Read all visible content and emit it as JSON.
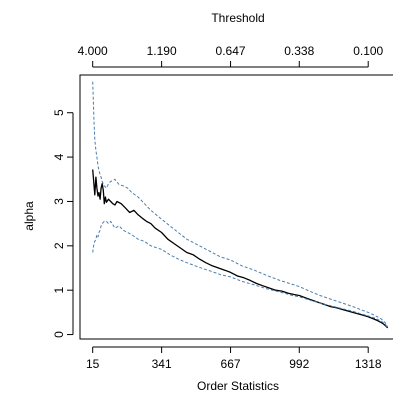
{
  "chart_data": {
    "type": "line",
    "xlabel": "Order Statistics",
    "ylabel": "alpha",
    "top_axis_label": "Threshold",
    "xlim": [
      -45,
      1440
    ],
    "ylim": [
      -0.1,
      5.85
    ],
    "x_ticks": [
      15,
      341,
      667,
      992,
      1318
    ],
    "x_tick_labels": [
      "15",
      "341",
      "667",
      "992",
      "1318"
    ],
    "y_ticks": [
      0,
      1,
      2,
      3,
      4,
      5
    ],
    "y_tick_labels": [
      "0",
      "1",
      "2",
      "3",
      "4",
      "5"
    ],
    "top_ticks": [
      15,
      341,
      667,
      992,
      1318
    ],
    "top_tick_labels": [
      "4.000",
      "1.190",
      "0.647",
      "0.338",
      "0.100"
    ],
    "grid": false,
    "series": [
      {
        "name": "",
        "role": "estimate",
        "color": "#000000",
        "style": "solid",
        "x": [
          15,
          20,
          25,
          30,
          35,
          40,
          45,
          50,
          55,
          60,
          65,
          70,
          75,
          80,
          90,
          100,
          110,
          120,
          130,
          150,
          170,
          190,
          210,
          230,
          250,
          270,
          290,
          310,
          341,
          370,
          400,
          430,
          460,
          490,
          520,
          550,
          580,
          610,
          640,
          667,
          700,
          730,
          760,
          790,
          820,
          850,
          880,
          910,
          940,
          970,
          992,
          1020,
          1050,
          1080,
          1110,
          1140,
          1170,
          1200,
          1230,
          1260,
          1290,
          1318,
          1340,
          1360,
          1380,
          1390,
          1400,
          1410
        ],
        "y": [
          3.72,
          3.45,
          3.15,
          3.55,
          3.3,
          3.12,
          3.2,
          3.05,
          3.3,
          3.4,
          3.25,
          2.95,
          3.1,
          2.98,
          3.05,
          3.0,
          2.95,
          2.92,
          3.0,
          2.95,
          2.85,
          2.75,
          2.8,
          2.7,
          2.62,
          2.55,
          2.5,
          2.4,
          2.3,
          2.15,
          2.05,
          1.95,
          1.85,
          1.8,
          1.7,
          1.62,
          1.55,
          1.5,
          1.45,
          1.4,
          1.32,
          1.28,
          1.22,
          1.15,
          1.1,
          1.05,
          1.0,
          0.98,
          0.93,
          0.9,
          0.88,
          0.83,
          0.78,
          0.73,
          0.68,
          0.63,
          0.6,
          0.56,
          0.52,
          0.48,
          0.44,
          0.4,
          0.36,
          0.32,
          0.27,
          0.24,
          0.2,
          0.15
        ]
      },
      {
        "name": "",
        "role": "upper-ci",
        "color": "#4a7fb0",
        "style": "dashed",
        "x": [
          15,
          18,
          21,
          25,
          30,
          35,
          40,
          45,
          50,
          55,
          60,
          70,
          80,
          90,
          100,
          120,
          140,
          160,
          180,
          200,
          230,
          260,
          290,
          341,
          380,
          420,
          460,
          500,
          540,
          580,
          620,
          667,
          720,
          780,
          840,
          900,
          960,
          992,
          1040,
          1090,
          1140,
          1190,
          1240,
          1290,
          1318,
          1350,
          1380,
          1400,
          1410
        ],
        "y": [
          5.7,
          5.3,
          4.8,
          4.4,
          4.15,
          4.0,
          3.8,
          3.7,
          3.6,
          3.55,
          3.45,
          3.35,
          3.3,
          3.4,
          3.45,
          3.5,
          3.38,
          3.35,
          3.3,
          3.2,
          3.1,
          2.95,
          2.8,
          2.6,
          2.45,
          2.3,
          2.15,
          2.05,
          1.95,
          1.85,
          1.75,
          1.68,
          1.55,
          1.45,
          1.33,
          1.22,
          1.13,
          1.08,
          0.98,
          0.88,
          0.8,
          0.72,
          0.64,
          0.55,
          0.5,
          0.43,
          0.35,
          0.26,
          0.17
        ]
      },
      {
        "name": "",
        "role": "lower-ci",
        "color": "#4a7fb0",
        "style": "dashed",
        "x": [
          15,
          18,
          21,
          25,
          30,
          35,
          40,
          45,
          50,
          55,
          60,
          70,
          80,
          90,
          100,
          120,
          140,
          160,
          180,
          200,
          230,
          260,
          290,
          341,
          380,
          420,
          460,
          500,
          540,
          580,
          620,
          667,
          720,
          780,
          840,
          900,
          960,
          992,
          1040,
          1090,
          1140,
          1190,
          1240,
          1290,
          1318,
          1350,
          1380,
          1400,
          1410
        ],
        "y": [
          1.85,
          1.95,
          2.05,
          2.1,
          2.15,
          2.25,
          2.2,
          2.3,
          2.35,
          2.45,
          2.5,
          2.55,
          2.55,
          2.5,
          2.55,
          2.4,
          2.45,
          2.35,
          2.3,
          2.25,
          2.15,
          2.1,
          2.0,
          1.92,
          1.8,
          1.7,
          1.62,
          1.55,
          1.48,
          1.42,
          1.35,
          1.3,
          1.2,
          1.12,
          1.03,
          0.96,
          0.88,
          0.85,
          0.78,
          0.71,
          0.65,
          0.59,
          0.53,
          0.46,
          0.42,
          0.37,
          0.3,
          0.23,
          0.14
        ]
      }
    ]
  }
}
